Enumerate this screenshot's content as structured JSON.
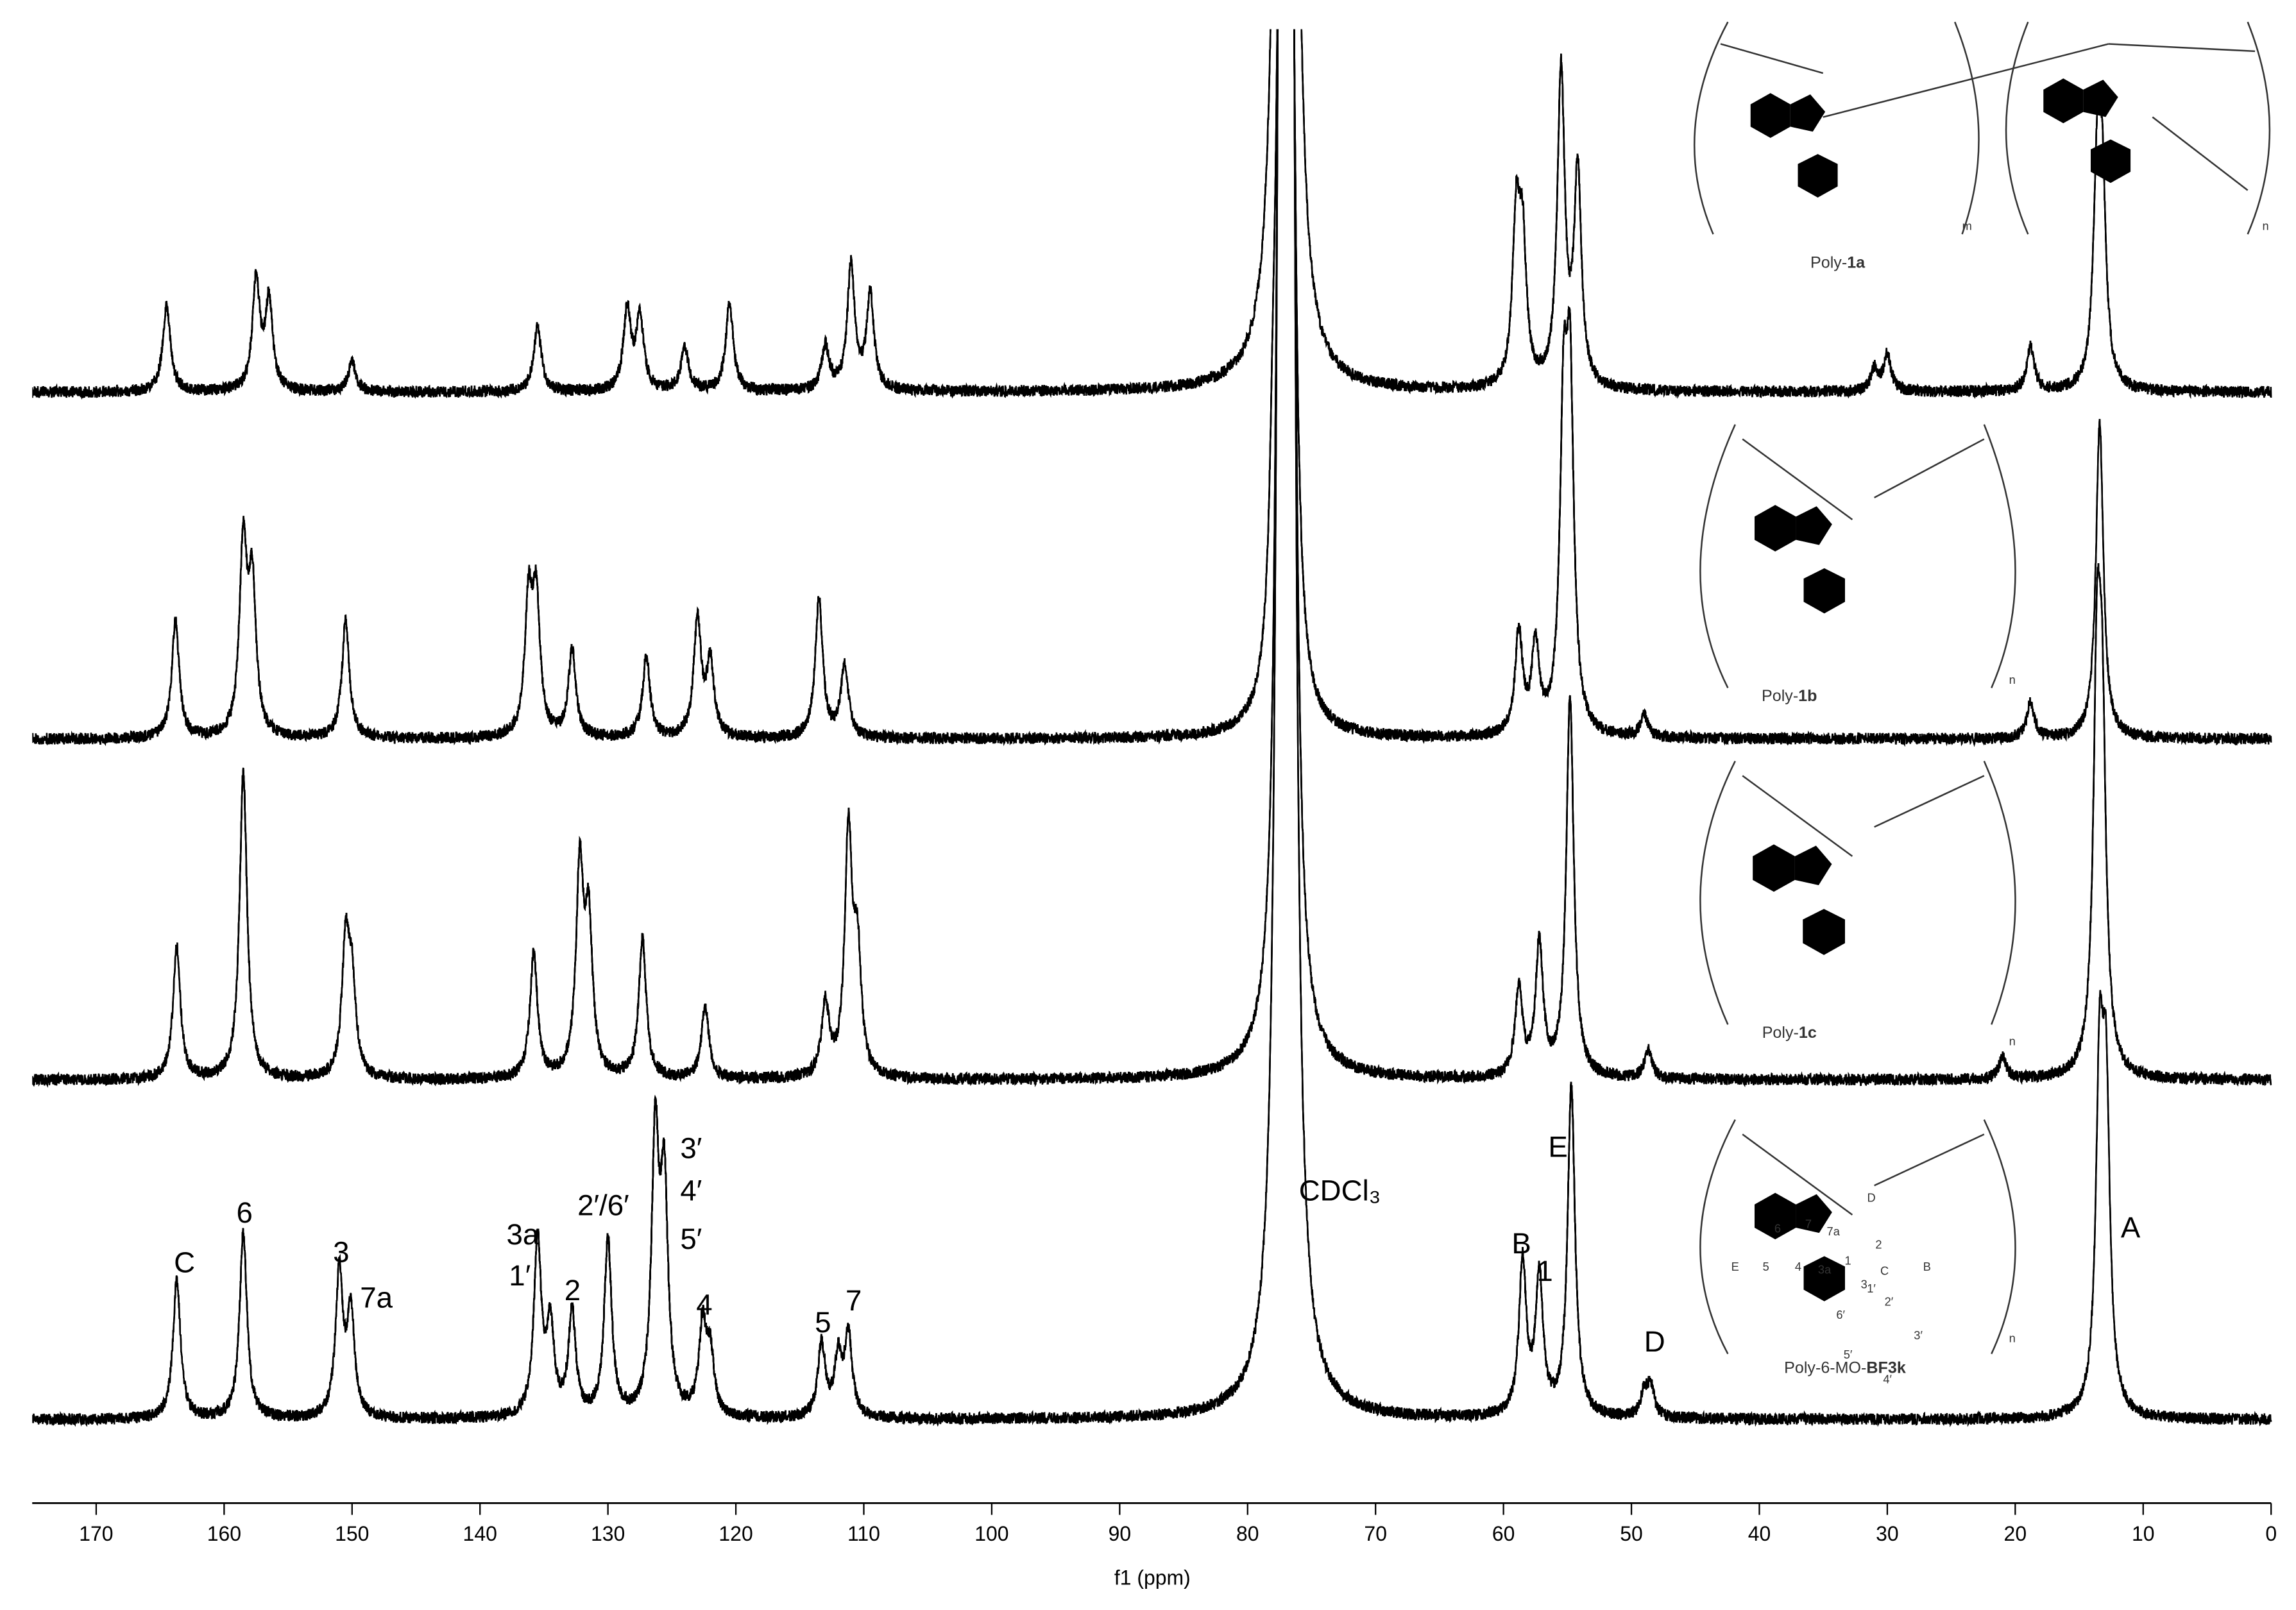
{
  "chart_data": {
    "type": "spectrum",
    "xlabel": "f1 (ppm)",
    "xlim": [
      175,
      0
    ],
    "xticks": [
      170,
      160,
      150,
      140,
      130,
      120,
      110,
      100,
      90,
      80,
      70,
      60,
      50,
      40,
      30,
      20,
      10,
      0
    ],
    "series": [
      {
        "color": "#000000",
        "x": [
          164.5,
          157.5,
          156.5,
          150,
          135.5,
          128.5,
          127.5,
          124,
          120.5,
          113,
          111,
          109.5,
          77.4,
          77.0,
          76.6,
          59,
          58.5,
          55.5,
          54.2,
          31,
          30,
          18.8,
          13.6,
          13.2
        ],
        "values": [
          60,
          75,
          60,
          20,
          45,
          55,
          50,
          30,
          60,
          30,
          85,
          65,
          900,
          900,
          900,
          110,
          90,
          215,
          145,
          15,
          25,
          30,
          135,
          125
        ]
      },
      {
        "color": "#000000",
        "x": [
          163.8,
          158.5,
          157.8,
          150.5,
          136.2,
          135.6,
          132.8,
          127,
          123,
          122,
          113.5,
          111.5,
          78,
          77.4,
          77.0,
          76.6,
          58.8,
          57.5,
          55.3,
          54.8,
          49,
          18.8,
          13.4
        ],
        "values": [
          80,
          130,
          100,
          80,
          90,
          90,
          60,
          55,
          80,
          50,
          95,
          50,
          100,
          480,
          480,
          480,
          70,
          60,
          200,
          220,
          15,
          25,
          215
        ]
      },
      {
        "color": "#000000",
        "x": [
          163.7,
          158.5,
          150.5,
          150,
          135.8,
          132.2,
          131.5,
          127.3,
          122.4,
          113,
          111.2,
          110.5,
          77.4,
          77.0,
          76.6,
          58.8,
          57.2,
          54.8,
          48.7,
          21,
          13.6,
          13.2
        ],
        "values": [
          90,
          210,
          90,
          60,
          85,
          140,
          100,
          95,
          50,
          50,
          165,
          80,
          710,
          710,
          710,
          60,
          90,
          260,
          20,
          15,
          255,
          200
        ]
      },
      {
        "color": "#000000",
        "x": [
          163.7,
          158.5,
          151,
          150.1,
          135.5,
          134.5,
          132.8,
          130,
          126.3,
          125.6,
          122.6,
          122,
          113.3,
          112,
          111.2,
          77.4,
          77.0,
          76.6,
          58.5,
          57.2,
          54.7,
          49,
          48.5,
          13.4,
          12.9
        ],
        "values": [
          95,
          127,
          98,
          70,
          120,
          60,
          70,
          120,
          185,
          150,
          60,
          40,
          50,
          40,
          55,
          945,
          945,
          945,
          105,
          95,
          225,
          15,
          20,
          220,
          200
        ]
      }
    ],
    "annotations": [
      "C",
      "6",
      "3",
      "7a",
      "3a",
      "1′",
      "2",
      "2′/6′",
      "3′",
      "4′",
      "5′",
      "4",
      "5",
      "7",
      "CDCl₃",
      "B",
      "1",
      "E",
      "D",
      "A"
    ]
  },
  "structures": [
    {
      "prefix": "Poly-",
      "bold": "1a",
      "subscripts": [
        "m",
        "n"
      ]
    },
    {
      "prefix": "Poly-",
      "bold": "1b",
      "subscripts": [
        "n"
      ]
    },
    {
      "prefix": "Poly-",
      "bold": "1c",
      "subscripts": [
        "n"
      ]
    },
    {
      "prefix": "Poly-6-MO-",
      "bold": "BF3k",
      "subscripts": [
        "n"
      ],
      "atom_labels": [
        "D",
        "7",
        "7a",
        "1",
        "2",
        "6",
        "E",
        "5",
        "4",
        "3a",
        "3",
        "C",
        "B",
        "1′",
        "2′",
        "6′",
        "3′",
        "5′",
        "4′"
      ]
    }
  ]
}
